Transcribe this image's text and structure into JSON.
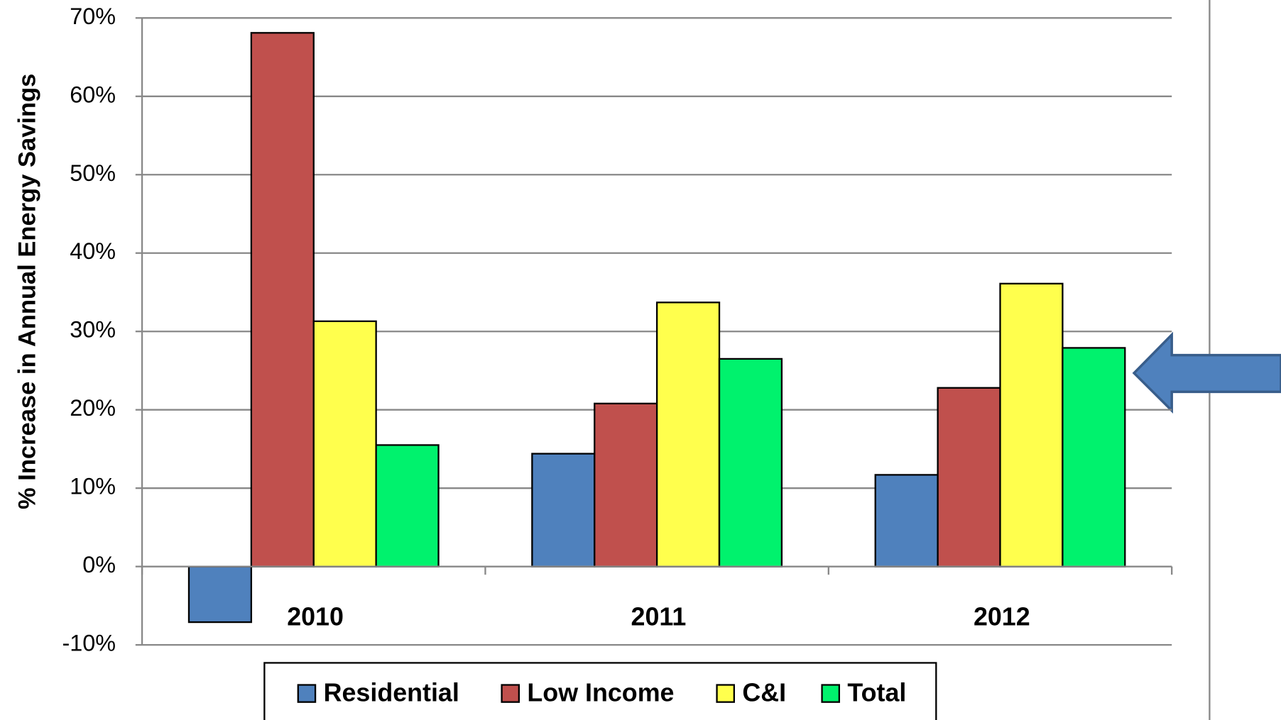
{
  "chart_data": {
    "type": "bar",
    "y_label": "% Increase in Annual Energy Savings",
    "categories": [
      "2010",
      "2011",
      "2012"
    ],
    "series": [
      {
        "name": "Residential",
        "color": "#4f81bd",
        "values": [
          -7.1,
          14.4,
          11.7
        ]
      },
      {
        "name": "Low Income",
        "color": "#c0504d",
        "values": [
          68.1,
          20.8,
          22.8
        ]
      },
      {
        "name": "C&I",
        "color": "#ffff4d",
        "values": [
          31.3,
          33.7,
          36.1
        ]
      },
      {
        "name": "Total",
        "color": "#00f26d",
        "values": [
          15.5,
          26.5,
          27.9
        ]
      }
    ],
    "ylim": [
      -10,
      70
    ],
    "yticks": [
      {
        "value": -10,
        "label": "-10%"
      },
      {
        "value": 0,
        "label": "0%"
      },
      {
        "value": 10,
        "label": "10%"
      },
      {
        "value": 20,
        "label": "20%"
      },
      {
        "value": 30,
        "label": "30%"
      },
      {
        "value": 40,
        "label": "40%"
      },
      {
        "value": 50,
        "label": "50%"
      },
      {
        "value": 60,
        "label": "60%"
      },
      {
        "value": 70,
        "label": "70%"
      }
    ],
    "grid": true,
    "legend": "bottom"
  }
}
